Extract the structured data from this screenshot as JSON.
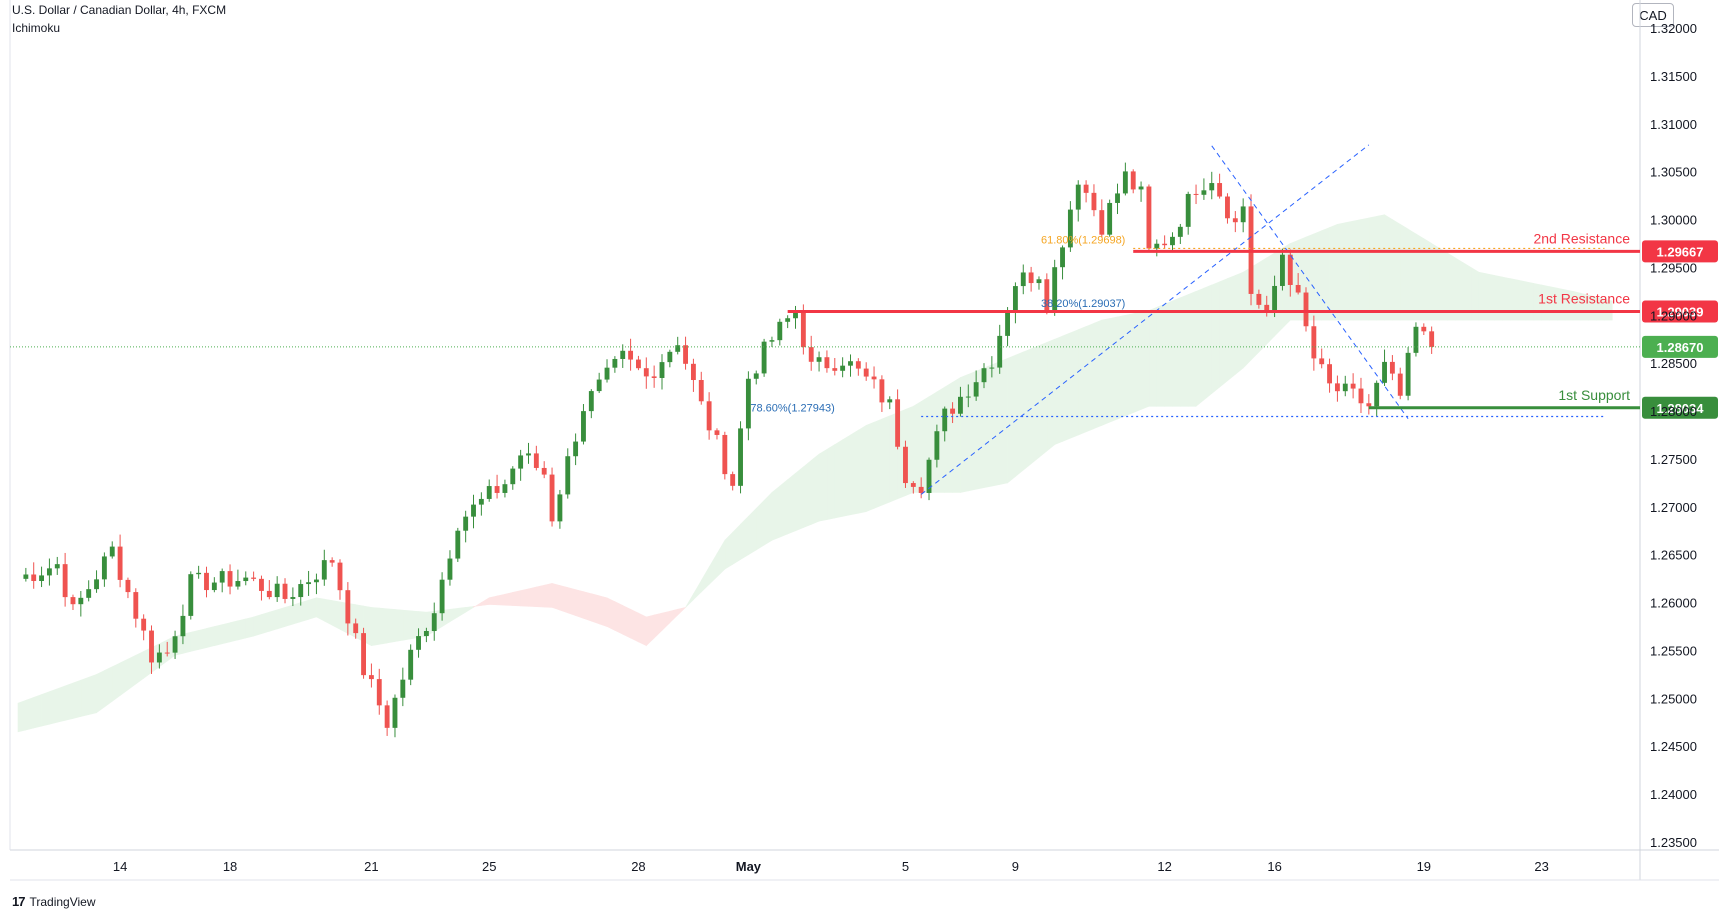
{
  "header": {
    "symbol_line": "U.S. Dollar / Canadian Dollar, 4h, FXCM",
    "indicator_line": "Ichimoku",
    "currency_badge": "CAD"
  },
  "footer": {
    "brand": "TradingView",
    "brand_icon": "tradingview-logo-icon"
  },
  "colors": {
    "up": "#388e3c",
    "down": "#ef5350",
    "resistance": "#f23645",
    "support": "#388e3c",
    "fib": "#2962ff",
    "fib_label": "#2a6db5",
    "fib_gold": "#f5a623",
    "cloud_bull": "#e8f5e9",
    "cloud_bear": "#fde4e4",
    "price_line": "#4caf50"
  },
  "chart_data": {
    "type": "candlestick",
    "title": "U.S. Dollar / Canadian Dollar, 4h, FXCM",
    "y_axis": {
      "ticks": [
        "1.32000",
        "1.31500",
        "1.31000",
        "1.30500",
        "1.30000",
        "1.29500",
        "1.29000",
        "1.28500",
        "1.28000",
        "1.27500",
        "1.27000",
        "1.26500",
        "1.26000",
        "1.25500",
        "1.25000",
        "1.24500",
        "1.24000",
        "1.23500"
      ],
      "range": [
        1.235,
        1.32
      ]
    },
    "x_axis": {
      "ticks": [
        {
          "label": "14",
          "i": 13
        },
        {
          "label": "18",
          "i": 27
        },
        {
          "label": "21",
          "i": 45
        },
        {
          "label": "25",
          "i": 60
        },
        {
          "label": "28",
          "i": 79
        },
        {
          "label": "May",
          "i": 93
        },
        {
          "label": "5",
          "i": 113
        },
        {
          "label": "9",
          "i": 127
        },
        {
          "label": "12",
          "i": 146
        },
        {
          "label": "16",
          "i": 160
        },
        {
          "label": "19",
          "i": 179
        },
        {
          "label": "23",
          "i": 194
        }
      ],
      "bar_count": 205
    },
    "levels": [
      {
        "name": "2nd Resistance",
        "value": 1.29667,
        "label": "1.29667",
        "kind": "resistance",
        "from_i": 142
      },
      {
        "name": "1st Resistance",
        "value": 1.29039,
        "label": "1.29039",
        "kind": "resistance",
        "from_i": 98
      },
      {
        "name": "1st Support",
        "value": 1.28034,
        "label": "1.28034",
        "kind": "support",
        "from_i": 172
      }
    ],
    "last_price": {
      "value": 1.2867,
      "label": "1.28670"
    },
    "fib_labels": [
      {
        "text": "38.20%(1.29037)",
        "value": 1.29037,
        "at_i": 141
      },
      {
        "text": "78.60%(1.27943)",
        "value": 1.27943,
        "at_i": 104
      },
      {
        "text": "61.80%(1.29698)",
        "value": 1.29698,
        "at_i": 141
      }
    ],
    "fib_levels": [
      {
        "value": 1.29698,
        "from_i": 142,
        "to_i": 202,
        "style": "gold"
      },
      {
        "value": 1.29037,
        "from_i": 142,
        "to_i": 202,
        "style": "blue"
      },
      {
        "value": 1.27943,
        "from_i": 115,
        "to_i": 202,
        "style": "blue"
      }
    ],
    "trend_lines": [
      {
        "from": {
          "i": 115,
          "v": 1.2713
        },
        "to": {
          "i": 172,
          "v": 1.3078
        }
      },
      {
        "from": {
          "i": 152,
          "v": 1.3077
        },
        "to": {
          "i": 177,
          "v": 1.2792
        }
      }
    ],
    "anchors": [
      {
        "i": 0,
        "v": 1.2625
      },
      {
        "i": 5,
        "v": 1.264
      },
      {
        "i": 7,
        "v": 1.259
      },
      {
        "i": 12,
        "v": 1.2655
      },
      {
        "i": 17,
        "v": 1.2545
      },
      {
        "i": 19,
        "v": 1.2548
      },
      {
        "i": 22,
        "v": 1.262
      },
      {
        "i": 29,
        "v": 1.2625
      },
      {
        "i": 34,
        "v": 1.2605
      },
      {
        "i": 40,
        "v": 1.2645
      },
      {
        "i": 44,
        "v": 1.253
      },
      {
        "i": 47,
        "v": 1.2475
      },
      {
        "i": 50,
        "v": 1.2545
      },
      {
        "i": 53,
        "v": 1.2595
      },
      {
        "i": 56,
        "v": 1.2685
      },
      {
        "i": 62,
        "v": 1.2725
      },
      {
        "i": 64,
        "v": 1.2755
      },
      {
        "i": 67,
        "v": 1.2735
      },
      {
        "i": 68,
        "v": 1.269
      },
      {
        "i": 72,
        "v": 1.2805
      },
      {
        "i": 77,
        "v": 1.2855
      },
      {
        "i": 80,
        "v": 1.2835
      },
      {
        "i": 84,
        "v": 1.2875
      },
      {
        "i": 87,
        "v": 1.2805
      },
      {
        "i": 91,
        "v": 1.2725
      },
      {
        "i": 93,
        "v": 1.2835
      },
      {
        "i": 96,
        "v": 1.2875
      },
      {
        "i": 99,
        "v": 1.2905
      },
      {
        "i": 101,
        "v": 1.2845
      },
      {
        "i": 105,
        "v": 1.2855
      },
      {
        "i": 109,
        "v": 1.2825
      },
      {
        "i": 111,
        "v": 1.2805
      },
      {
        "i": 113,
        "v": 1.2735
      },
      {
        "i": 115,
        "v": 1.2725
      },
      {
        "i": 118,
        "v": 1.2795
      },
      {
        "i": 121,
        "v": 1.2825
      },
      {
        "i": 124,
        "v": 1.2855
      },
      {
        "i": 127,
        "v": 1.2935
      },
      {
        "i": 130,
        "v": 1.2945
      },
      {
        "i": 131,
        "v": 1.2915
      },
      {
        "i": 135,
        "v": 1.3045
      },
      {
        "i": 138,
        "v": 1.2995
      },
      {
        "i": 141,
        "v": 1.3045
      },
      {
        "i": 143,
        "v": 1.3025
      },
      {
        "i": 144,
        "v": 1.2965
      },
      {
        "i": 147,
        "v": 1.2985
      },
      {
        "i": 150,
        "v": 1.3035
      },
      {
        "i": 152,
        "v": 1.3045
      },
      {
        "i": 155,
        "v": 1.2995
      },
      {
        "i": 156,
        "v": 1.3015
      },
      {
        "i": 157,
        "v": 1.2925
      },
      {
        "i": 159,
        "v": 1.2895
      },
      {
        "i": 161,
        "v": 1.2965
      },
      {
        "i": 163,
        "v": 1.2915
      },
      {
        "i": 165,
        "v": 1.2855
      },
      {
        "i": 167,
        "v": 1.2825
      },
      {
        "i": 170,
        "v": 1.2815
      },
      {
        "i": 172,
        "v": 1.2805
      },
      {
        "i": 174,
        "v": 1.2845
      },
      {
        "i": 176,
        "v": 1.2815
      },
      {
        "i": 178,
        "v": 1.2885
      },
      {
        "i": 180,
        "v": 1.2867
      }
    ],
    "cloud": {
      "span_a": [
        [
          0,
          1.2495
        ],
        [
          10,
          1.2525
        ],
        [
          20,
          1.2565
        ],
        [
          30,
          1.2585
        ],
        [
          38,
          1.2605
        ],
        [
          45,
          1.2595
        ],
        [
          52,
          1.259
        ],
        [
          60,
          1.2598
        ],
        [
          68,
          1.2595
        ],
        [
          75,
          1.2575
        ],
        [
          80,
          1.2555
        ],
        [
          85,
          1.2595
        ],
        [
          90,
          1.2665
        ],
        [
          96,
          1.2715
        ],
        [
          102,
          1.2755
        ],
        [
          108,
          1.2785
        ],
        [
          114,
          1.2805
        ],
        [
          120,
          1.2835
        ],
        [
          126,
          1.2855
        ],
        [
          132,
          1.2875
        ],
        [
          138,
          1.2895
        ],
        [
          144,
          1.2905
        ],
        [
          150,
          1.2925
        ],
        [
          156,
          1.2945
        ],
        [
          162,
          1.2975
        ],
        [
          168,
          1.2995
        ],
        [
          174,
          1.3005
        ],
        [
          180,
          1.2975
        ],
        [
          186,
          1.2945
        ],
        [
          192,
          1.2935
        ],
        [
          198,
          1.2925
        ],
        [
          203,
          1.2915
        ]
      ],
      "span_b": [
        [
          0,
          1.2465
        ],
        [
          10,
          1.2485
        ],
        [
          20,
          1.2545
        ],
        [
          30,
          1.2565
        ],
        [
          38,
          1.2585
        ],
        [
          45,
          1.2555
        ],
        [
          52,
          1.2565
        ],
        [
          60,
          1.2605
        ],
        [
          68,
          1.262
        ],
        [
          75,
          1.2605
        ],
        [
          80,
          1.2585
        ],
        [
          85,
          1.2595
        ],
        [
          90,
          1.2635
        ],
        [
          96,
          1.2665
        ],
        [
          102,
          1.2685
        ],
        [
          108,
          1.2695
        ],
        [
          114,
          1.2715
        ],
        [
          120,
          1.2715
        ],
        [
          126,
          1.2725
        ],
        [
          132,
          1.2765
        ],
        [
          138,
          1.2785
        ],
        [
          144,
          1.2805
        ],
        [
          150,
          1.2805
        ],
        [
          156,
          1.2845
        ],
        [
          162,
          1.2895
        ],
        [
          168,
          1.2895
        ],
        [
          174,
          1.2895
        ],
        [
          180,
          1.2895
        ],
        [
          186,
          1.2895
        ],
        [
          192,
          1.2895
        ],
        [
          198,
          1.2895
        ],
        [
          203,
          1.2895
        ]
      ]
    }
  }
}
